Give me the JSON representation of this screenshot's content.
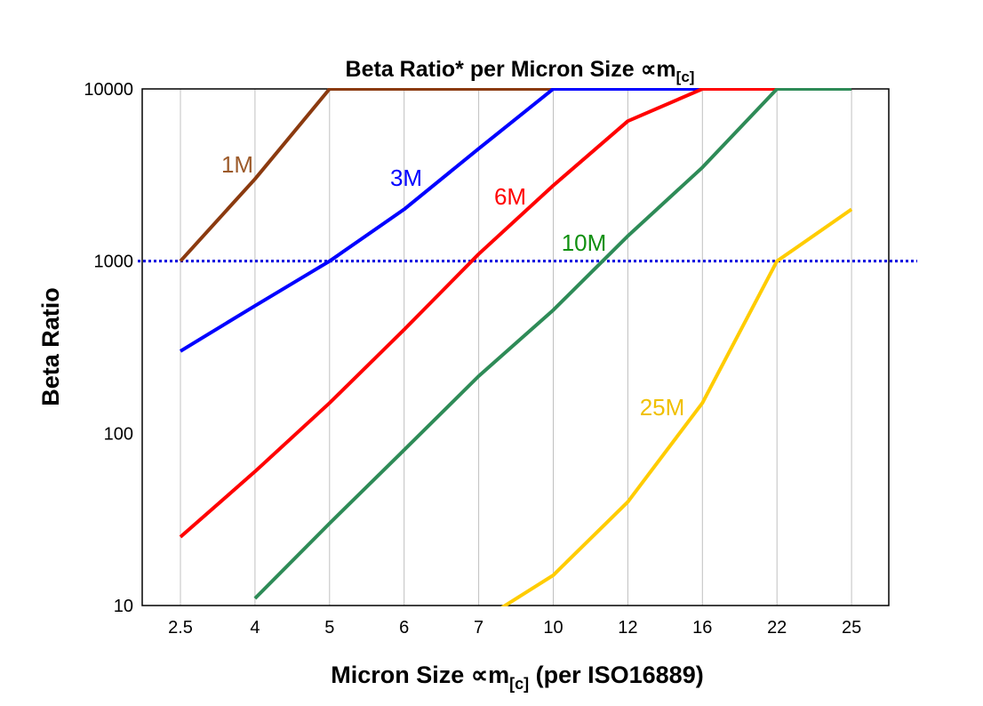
{
  "chart_data": {
    "type": "line",
    "title": "Beta Ratio* per Micron Size ∝m",
    "title_sub": "[c]",
    "xlabel": "Micron Size ∝m",
    "xlabel_sub": "[c]",
    "xlabel_suffix": " (per ISO16889)",
    "ylabel": "Beta Ratio",
    "yscale": "log",
    "ylim": [
      10,
      10000
    ],
    "yticks": [
      "10",
      "100",
      "1000",
      "10000"
    ],
    "categories": [
      "2.5",
      "4",
      "5",
      "6",
      "7",
      "10",
      "12",
      "16",
      "22",
      "25"
    ],
    "grid": "vertical",
    "reference_line": {
      "value": 1000,
      "style": "dotted",
      "color": "#0000E0"
    },
    "series": [
      {
        "name": "1M",
        "color": "#8B3A0F",
        "label_color": "#9C5A2A",
        "values": [
          1000,
          3000,
          10000,
          10000,
          10000,
          10000,
          10000,
          10000,
          10000,
          10000
        ]
      },
      {
        "name": "3M",
        "color": "#0000FF",
        "label_color": "#0000FF",
        "values": [
          300,
          550,
          1000,
          2000,
          4500,
          10000,
          10000,
          10000,
          10000,
          10000
        ]
      },
      {
        "name": "6M",
        "color": "#FF0000",
        "label_color": "#FF0000",
        "values": [
          25,
          60,
          150,
          400,
          1100,
          2750,
          6500,
          10000,
          10000,
          10000
        ]
      },
      {
        "name": "10M",
        "color": "#2E8B57",
        "label_color": "#109010",
        "values": [
          null,
          11,
          30,
          80,
          215,
          520,
          1400,
          3500,
          10000,
          10000
        ]
      },
      {
        "name": "25M",
        "color": "#FFCC00",
        "label_color": "#F0C000",
        "values": [
          null,
          null,
          null,
          null,
          8,
          15,
          40,
          150,
          1000,
          2000
        ]
      }
    ]
  }
}
